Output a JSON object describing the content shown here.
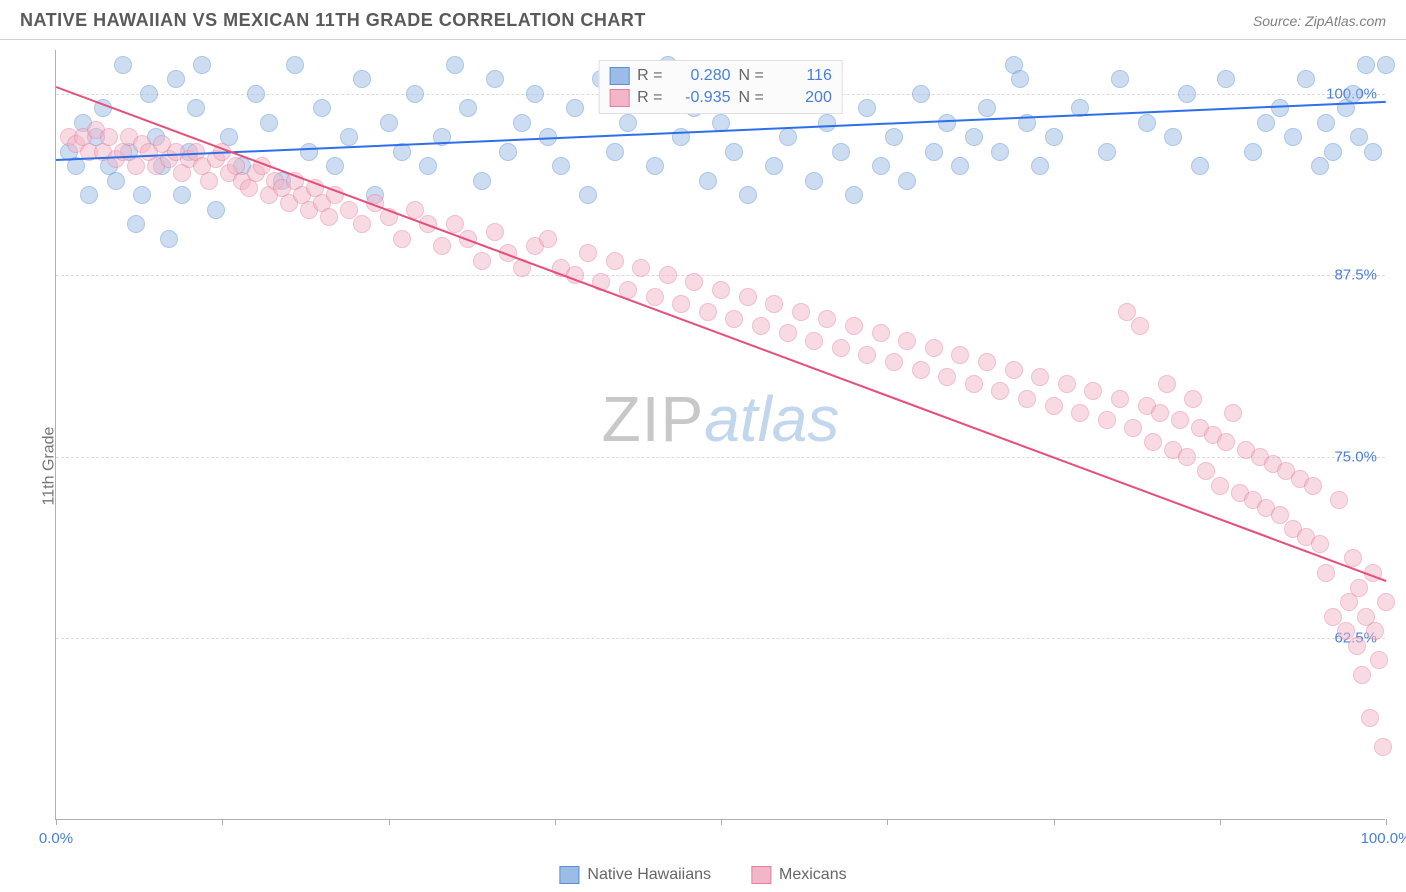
{
  "title": "NATIVE HAWAIIAN VS MEXICAN 11TH GRADE CORRELATION CHART",
  "source": "Source: ZipAtlas.com",
  "ylabel": "11th Grade",
  "watermark": {
    "part1": "ZIP",
    "part2": "atlas"
  },
  "chart": {
    "type": "scatter",
    "xlim": [
      0,
      100
    ],
    "ylim": [
      50,
      103
    ],
    "x_ticks": [
      0,
      12.5,
      25,
      37.5,
      50,
      62.5,
      75,
      87.5,
      100
    ],
    "x_tick_labels": {
      "0": "0.0%",
      "100": "100.0%"
    },
    "y_gridlines": [
      62.5,
      75,
      87.5,
      100
    ],
    "y_tick_labels": [
      "62.5%",
      "75.0%",
      "87.5%",
      "100.0%"
    ],
    "background_color": "#ffffff",
    "grid_color": "#dcdcdc",
    "axis_color": "#b0b0b0",
    "tick_label_color": "#4a7fd6",
    "point_radius": 9,
    "point_opacity": 0.5,
    "series": [
      {
        "name": "Native Hawaiians",
        "color_fill": "#9bbce6",
        "color_stroke": "#5a8fd0",
        "R": "0.280",
        "N": "116",
        "trend": {
          "x1": 0,
          "y1": 95.5,
          "x2": 100,
          "y2": 99.5,
          "color": "#2e6fea",
          "width": 2
        },
        "points": [
          [
            1,
            96
          ],
          [
            1.5,
            95
          ],
          [
            2,
            98
          ],
          [
            2.5,
            93
          ],
          [
            3,
            97
          ],
          [
            3.5,
            99
          ],
          [
            4,
            95
          ],
          [
            4.5,
            94
          ],
          [
            5,
            102
          ],
          [
            5.5,
            96
          ],
          [
            6,
            91
          ],
          [
            6.5,
            93
          ],
          [
            7,
            100
          ],
          [
            7.5,
            97
          ],
          [
            8,
            95
          ],
          [
            8.5,
            90
          ],
          [
            9,
            101
          ],
          [
            9.5,
            93
          ],
          [
            10,
            96
          ],
          [
            10.5,
            99
          ],
          [
            11,
            102
          ],
          [
            12,
            92
          ],
          [
            13,
            97
          ],
          [
            14,
            95
          ],
          [
            15,
            100
          ],
          [
            16,
            98
          ],
          [
            17,
            94
          ],
          [
            18,
            102
          ],
          [
            19,
            96
          ],
          [
            20,
            99
          ],
          [
            21,
            95
          ],
          [
            22,
            97
          ],
          [
            23,
            101
          ],
          [
            24,
            93
          ],
          [
            25,
            98
          ],
          [
            26,
            96
          ],
          [
            27,
            100
          ],
          [
            28,
            95
          ],
          [
            29,
            97
          ],
          [
            30,
            102
          ],
          [
            31,
            99
          ],
          [
            32,
            94
          ],
          [
            33,
            101
          ],
          [
            34,
            96
          ],
          [
            35,
            98
          ],
          [
            36,
            100
          ],
          [
            37,
            97
          ],
          [
            38,
            95
          ],
          [
            39,
            99
          ],
          [
            40,
            93
          ],
          [
            41,
            101
          ],
          [
            42,
            96
          ],
          [
            43,
            98
          ],
          [
            44,
            100
          ],
          [
            45,
            95
          ],
          [
            46,
            102
          ],
          [
            47,
            97
          ],
          [
            48,
            99
          ],
          [
            49,
            94
          ],
          [
            50,
            98
          ],
          [
            51,
            96
          ],
          [
            52,
            93
          ],
          [
            53,
            100
          ],
          [
            54,
            95
          ],
          [
            55,
            97
          ],
          [
            56,
            101
          ],
          [
            57,
            94
          ],
          [
            58,
            98
          ],
          [
            59,
            96
          ],
          [
            60,
            93
          ],
          [
            61,
            99
          ],
          [
            62,
            95
          ],
          [
            63,
            97
          ],
          [
            64,
            94
          ],
          [
            65,
            100
          ],
          [
            66,
            96
          ],
          [
            67,
            98
          ],
          [
            68,
            95
          ],
          [
            69,
            97
          ],
          [
            70,
            99
          ],
          [
            71,
            96
          ],
          [
            72,
            102
          ],
          [
            72.5,
            101
          ],
          [
            73,
            98
          ],
          [
            74,
            95
          ],
          [
            75,
            97
          ],
          [
            77,
            99
          ],
          [
            79,
            96
          ],
          [
            80,
            101
          ],
          [
            82,
            98
          ],
          [
            84,
            97
          ],
          [
            85,
            100
          ],
          [
            86,
            95
          ],
          [
            88,
            101
          ],
          [
            90,
            96
          ],
          [
            91,
            98
          ],
          [
            92,
            99
          ],
          [
            93,
            97
          ],
          [
            94,
            101
          ],
          [
            95,
            95
          ],
          [
            95.5,
            98
          ],
          [
            96,
            96
          ],
          [
            97,
            99
          ],
          [
            97.5,
            100
          ],
          [
            98,
            97
          ],
          [
            98.5,
            102
          ],
          [
            99,
            96
          ],
          [
            100,
            102
          ]
        ]
      },
      {
        "name": "Mexicans",
        "color_fill": "#f3b6c8",
        "color_stroke": "#e57fa0",
        "R": "-0.935",
        "N": "200",
        "trend": {
          "x1": 0,
          "y1": 100.5,
          "x2": 100,
          "y2": 66.5,
          "color": "#e84e7a",
          "width": 2
        },
        "points": [
          [
            1,
            97
          ],
          [
            1.5,
            96.5
          ],
          [
            2,
            97
          ],
          [
            2.5,
            96
          ],
          [
            3,
            97.5
          ],
          [
            3.5,
            96
          ],
          [
            4,
            97
          ],
          [
            4.5,
            95.5
          ],
          [
            5,
            96
          ],
          [
            5.5,
            97
          ],
          [
            6,
            95
          ],
          [
            6.5,
            96.5
          ],
          [
            7,
            96
          ],
          [
            7.5,
            95
          ],
          [
            8,
            96.5
          ],
          [
            8.5,
            95.5
          ],
          [
            9,
            96
          ],
          [
            9.5,
            94.5
          ],
          [
            10,
            95.5
          ],
          [
            10.5,
            96
          ],
          [
            11,
            95
          ],
          [
            11.5,
            94
          ],
          [
            12,
            95.5
          ],
          [
            12.5,
            96
          ],
          [
            13,
            94.5
          ],
          [
            13.5,
            95
          ],
          [
            14,
            94
          ],
          [
            14.5,
            93.5
          ],
          [
            15,
            94.5
          ],
          [
            15.5,
            95
          ],
          [
            16,
            93
          ],
          [
            16.5,
            94
          ],
          [
            17,
            93.5
          ],
          [
            17.5,
            92.5
          ],
          [
            18,
            94
          ],
          [
            18.5,
            93
          ],
          [
            19,
            92
          ],
          [
            19.5,
            93.5
          ],
          [
            20,
            92.5
          ],
          [
            20.5,
            91.5
          ],
          [
            21,
            93
          ],
          [
            22,
            92
          ],
          [
            23,
            91
          ],
          [
            24,
            92.5
          ],
          [
            25,
            91.5
          ],
          [
            26,
            90
          ],
          [
            27,
            92
          ],
          [
            28,
            91
          ],
          [
            29,
            89.5
          ],
          [
            30,
            91
          ],
          [
            31,
            90
          ],
          [
            32,
            88.5
          ],
          [
            33,
            90.5
          ],
          [
            34,
            89
          ],
          [
            35,
            88
          ],
          [
            36,
            89.5
          ],
          [
            37,
            90
          ],
          [
            38,
            88
          ],
          [
            39,
            87.5
          ],
          [
            40,
            89
          ],
          [
            41,
            87
          ],
          [
            42,
            88.5
          ],
          [
            43,
            86.5
          ],
          [
            44,
            88
          ],
          [
            45,
            86
          ],
          [
            46,
            87.5
          ],
          [
            47,
            85.5
          ],
          [
            48,
            87
          ],
          [
            49,
            85
          ],
          [
            50,
            86.5
          ],
          [
            51,
            84.5
          ],
          [
            52,
            86
          ],
          [
            53,
            84
          ],
          [
            54,
            85.5
          ],
          [
            55,
            83.5
          ],
          [
            56,
            85
          ],
          [
            57,
            83
          ],
          [
            58,
            84.5
          ],
          [
            59,
            82.5
          ],
          [
            60,
            84
          ],
          [
            61,
            82
          ],
          [
            62,
            83.5
          ],
          [
            63,
            81.5
          ],
          [
            64,
            83
          ],
          [
            65,
            81
          ],
          [
            66,
            82.5
          ],
          [
            67,
            80.5
          ],
          [
            68,
            82
          ],
          [
            69,
            80
          ],
          [
            70,
            81.5
          ],
          [
            71,
            79.5
          ],
          [
            72,
            81
          ],
          [
            73,
            79
          ],
          [
            74,
            80.5
          ],
          [
            75,
            78.5
          ],
          [
            76,
            80
          ],
          [
            77,
            78
          ],
          [
            78,
            79.5
          ],
          [
            79,
            77.5
          ],
          [
            80,
            79
          ],
          [
            80.5,
            85
          ],
          [
            81,
            77
          ],
          [
            81.5,
            84
          ],
          [
            82,
            78.5
          ],
          [
            82.5,
            76
          ],
          [
            83,
            78
          ],
          [
            83.5,
            80
          ],
          [
            84,
            75.5
          ],
          [
            84.5,
            77.5
          ],
          [
            85,
            75
          ],
          [
            85.5,
            79
          ],
          [
            86,
            77
          ],
          [
            86.5,
            74
          ],
          [
            87,
            76.5
          ],
          [
            87.5,
            73
          ],
          [
            88,
            76
          ],
          [
            88.5,
            78
          ],
          [
            89,
            72.5
          ],
          [
            89.5,
            75.5
          ],
          [
            90,
            72
          ],
          [
            90.5,
            75
          ],
          [
            91,
            71.5
          ],
          [
            91.5,
            74.5
          ],
          [
            92,
            71
          ],
          [
            92.5,
            74
          ],
          [
            93,
            70
          ],
          [
            93.5,
            73.5
          ],
          [
            94,
            69.5
          ],
          [
            94.5,
            73
          ],
          [
            95,
            69
          ],
          [
            95.5,
            67
          ],
          [
            96,
            64
          ],
          [
            96.5,
            72
          ],
          [
            97,
            63
          ],
          [
            97.2,
            65
          ],
          [
            97.5,
            68
          ],
          [
            97.8,
            62
          ],
          [
            98,
            66
          ],
          [
            98.2,
            60
          ],
          [
            98.5,
            64
          ],
          [
            98.8,
            57
          ],
          [
            99,
            67
          ],
          [
            99.2,
            63
          ],
          [
            99.5,
            61
          ],
          [
            99.8,
            55
          ],
          [
            100,
            65
          ]
        ]
      }
    ]
  },
  "legend_top": [
    {
      "swatch_fill": "#9bbce6",
      "swatch_stroke": "#5a8fd0",
      "r_label": "R =",
      "r_val": "0.280",
      "n_label": "N =",
      "n_val": "116"
    },
    {
      "swatch_fill": "#f3b6c8",
      "swatch_stroke": "#e57fa0",
      "r_label": "R =",
      "r_val": "-0.935",
      "n_label": "N =",
      "n_val": "200"
    }
  ],
  "legend_bottom": [
    {
      "swatch_fill": "#9bbce6",
      "swatch_stroke": "#5a8fd0",
      "label": "Native Hawaiians"
    },
    {
      "swatch_fill": "#f3b6c8",
      "swatch_stroke": "#e57fa0",
      "label": "Mexicans"
    }
  ]
}
